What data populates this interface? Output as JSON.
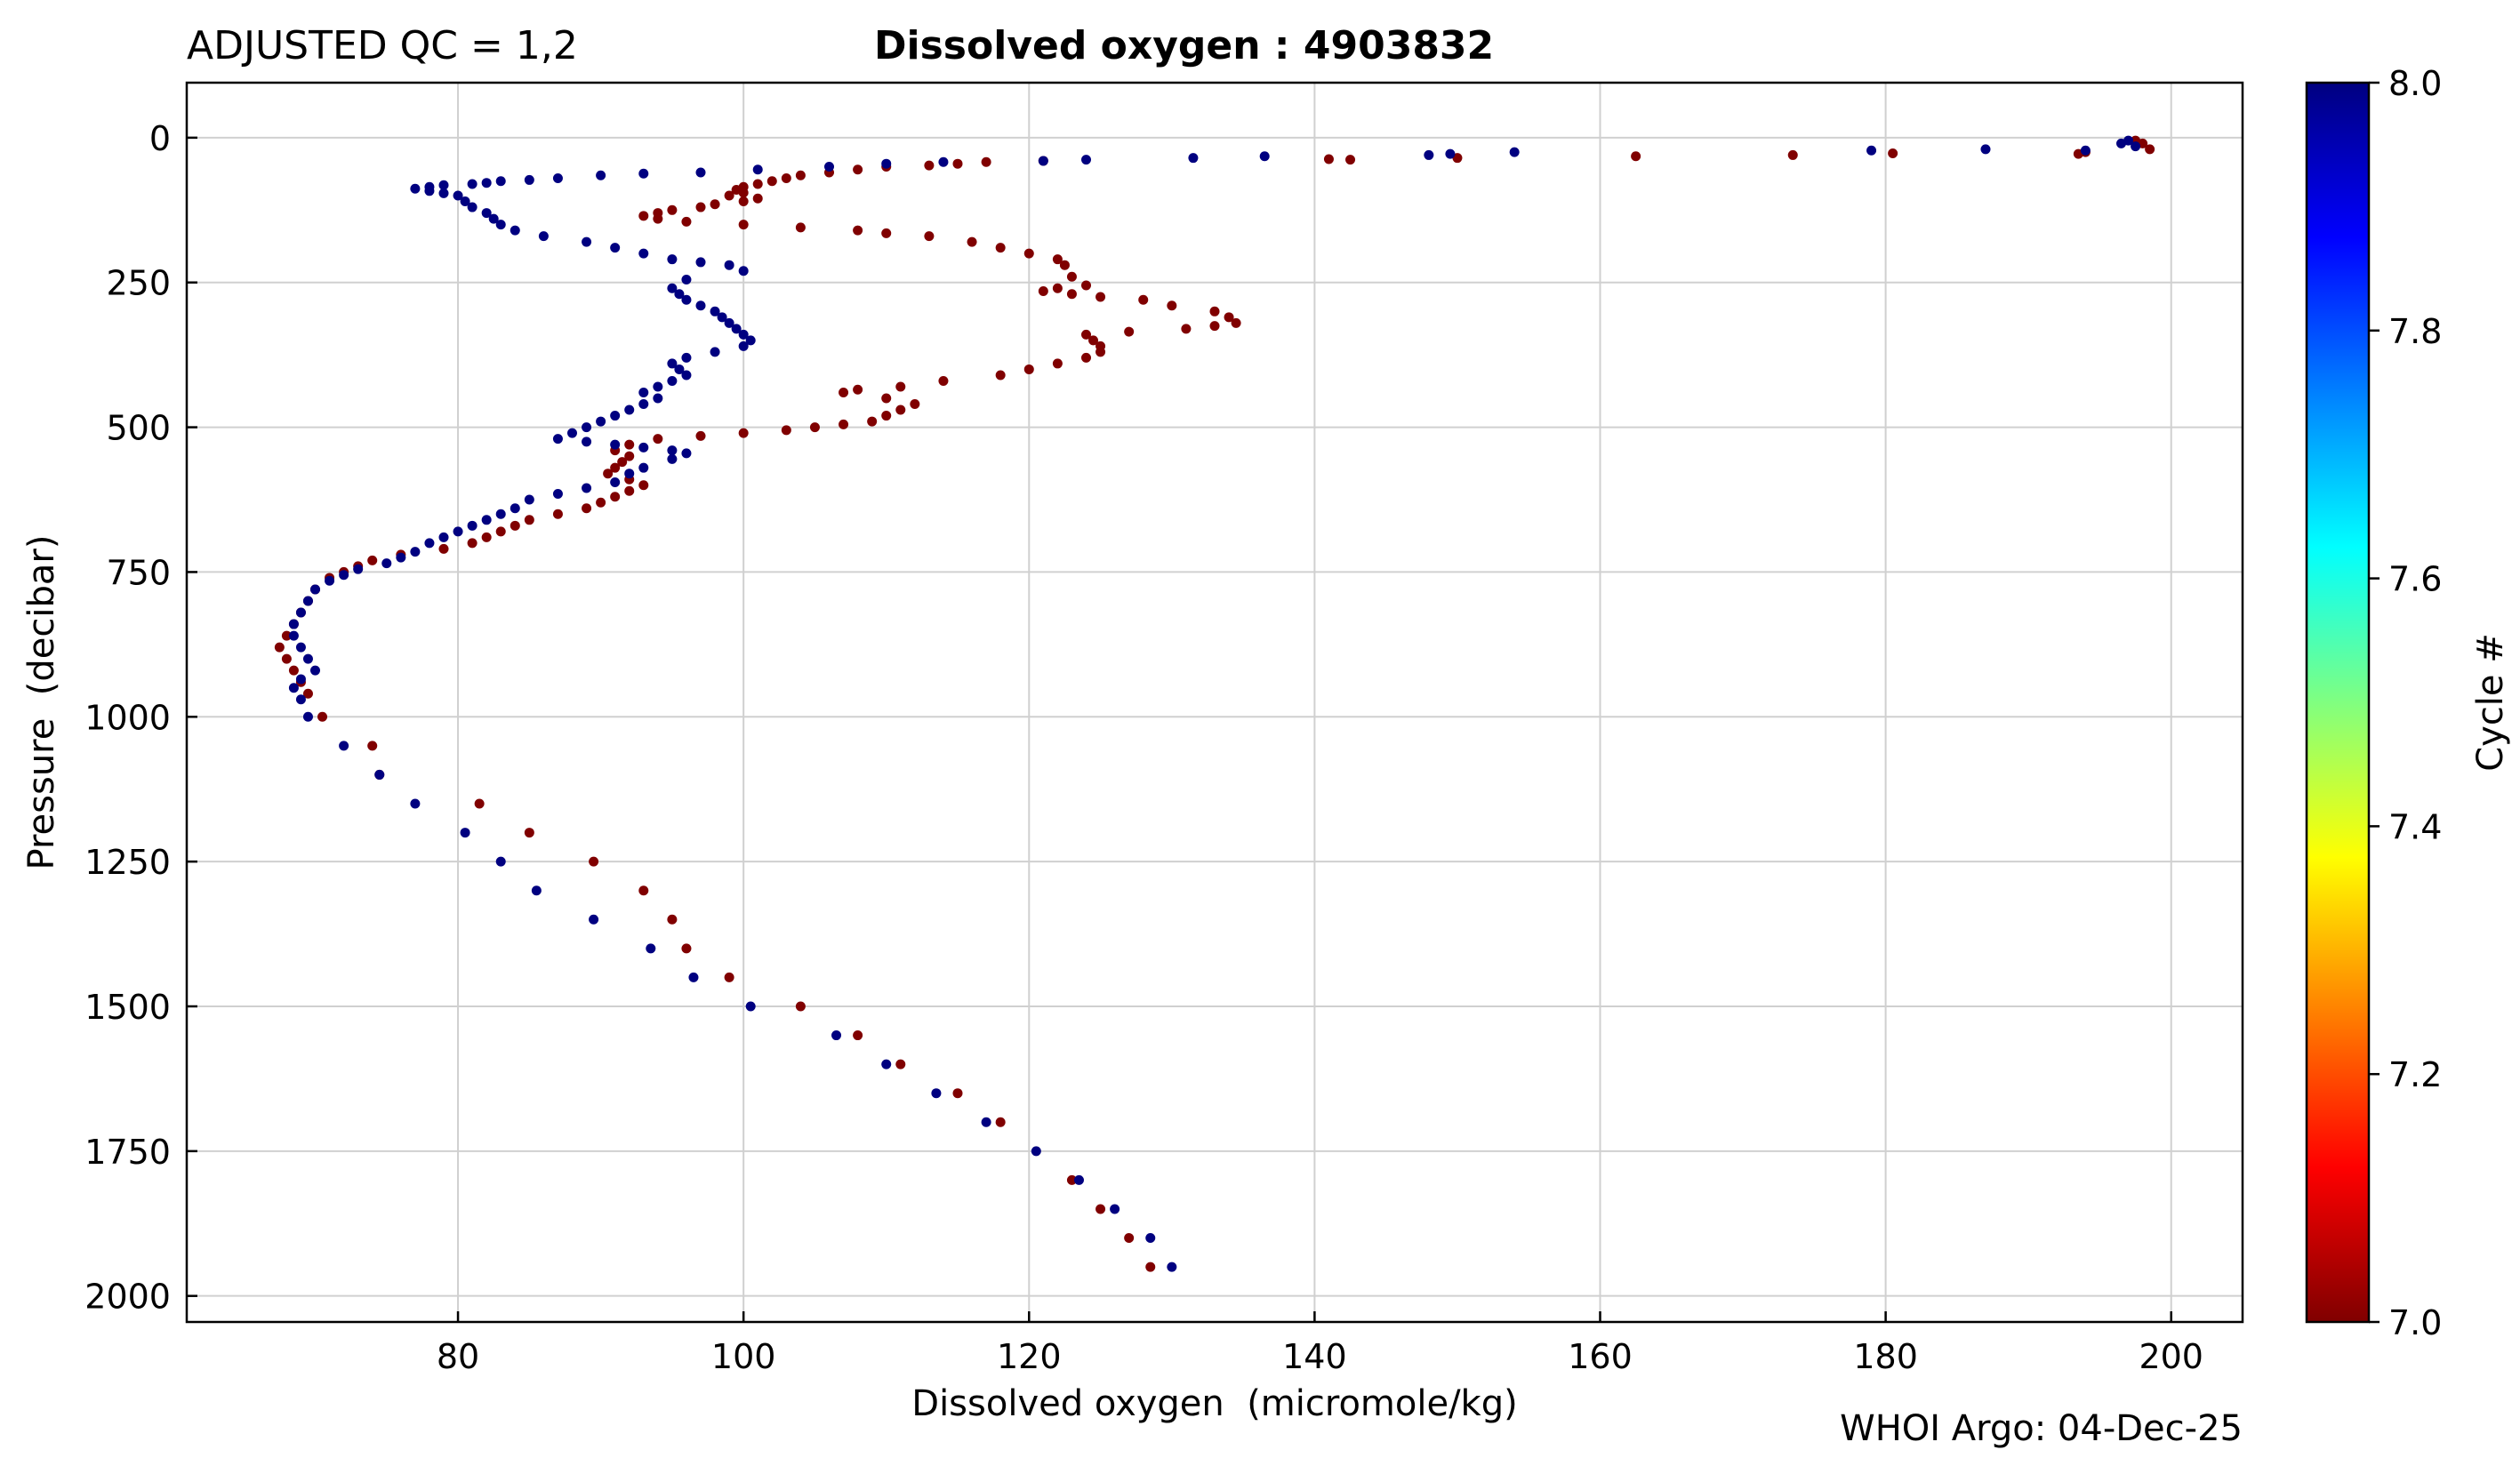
{
  "qc_label": "ADJUSTED QC = 1,2",
  "title_prefix": "Dissolved oxygen",
  "title_sep": ":",
  "title_id": "4903832",
  "credit": "WHOI Argo: 04-Dec-25",
  "chart_data": {
    "type": "scatter",
    "title": "Dissolved oxygen : 4903832",
    "xlabel": "Dissolved oxygen  (micromole/kg)",
    "ylabel": "Pressure  (decibar)",
    "xlim": [
      61,
      205
    ],
    "ylim": [
      2045,
      -95
    ],
    "y_inverted": true,
    "grid": true,
    "xticks": [
      80,
      100,
      120,
      140,
      160,
      180,
      200
    ],
    "yticks": [
      0,
      250,
      500,
      750,
      1000,
      1250,
      1500,
      1750,
      2000
    ],
    "colorbar": {
      "label": "Cycle #",
      "min": 7.0,
      "max": 8.0,
      "ticks": [
        "7.0",
        "7.2",
        "7.4",
        "7.6",
        "7.8",
        "8.0"
      ],
      "colormap": "jet",
      "colors": [
        "#800000",
        "#ff0000",
        "#ff8000",
        "#ffff00",
        "#80ff80",
        "#00ffff",
        "#0080ff",
        "#0000ff",
        "#000080"
      ]
    },
    "series": [
      {
        "name": "Cycle 7",
        "cycle": 7,
        "color": "#800000",
        "points": [
          [
            198.5,
            20
          ],
          [
            198,
            10
          ],
          [
            197.5,
            5
          ],
          [
            194,
            25
          ],
          [
            193.5,
            28
          ],
          [
            180.5,
            27
          ],
          [
            173.5,
            30
          ],
          [
            162.5,
            32
          ],
          [
            150,
            35
          ],
          [
            142.5,
            38
          ],
          [
            141,
            37
          ],
          [
            121,
            40
          ],
          [
            117,
            42
          ],
          [
            115,
            45
          ],
          [
            113,
            48
          ],
          [
            110,
            50
          ],
          [
            108,
            55
          ],
          [
            106,
            60
          ],
          [
            104,
            65
          ],
          [
            103,
            70
          ],
          [
            102,
            75
          ],
          [
            101,
            80
          ],
          [
            100,
            85
          ],
          [
            99.5,
            90
          ],
          [
            100,
            95
          ],
          [
            99,
            100
          ],
          [
            101,
            105
          ],
          [
            100,
            110
          ],
          [
            98,
            115
          ],
          [
            97,
            120
          ],
          [
            95,
            125
          ],
          [
            94,
            130
          ],
          [
            93,
            135
          ],
          [
            94,
            140
          ],
          [
            96,
            145
          ],
          [
            100,
            150
          ],
          [
            104,
            155
          ],
          [
            108,
            160
          ],
          [
            110,
            165
          ],
          [
            113,
            170
          ],
          [
            116,
            180
          ],
          [
            118,
            190
          ],
          [
            120,
            200
          ],
          [
            122,
            210
          ],
          [
            122.5,
            220
          ],
          [
            123,
            240
          ],
          [
            124,
            255
          ],
          [
            122,
            260
          ],
          [
            121,
            265
          ],
          [
            123,
            270
          ],
          [
            125,
            275
          ],
          [
            128,
            280
          ],
          [
            130,
            290
          ],
          [
            133,
            300
          ],
          [
            134,
            310
          ],
          [
            134.5,
            320
          ],
          [
            133,
            325
          ],
          [
            131,
            330
          ],
          [
            127,
            335
          ],
          [
            124,
            340
          ],
          [
            124.5,
            350
          ],
          [
            125,
            360
          ],
          [
            125,
            370
          ],
          [
            124,
            380
          ],
          [
            122,
            390
          ],
          [
            120,
            400
          ],
          [
            118,
            410
          ],
          [
            114,
            420
          ],
          [
            111,
            430
          ],
          [
            108,
            435
          ],
          [
            107,
            440
          ],
          [
            110,
            450
          ],
          [
            112,
            460
          ],
          [
            111,
            470
          ],
          [
            110,
            480
          ],
          [
            109,
            490
          ],
          [
            107,
            495
          ],
          [
            105,
            500
          ],
          [
            103,
            505
          ],
          [
            100,
            510
          ],
          [
            97,
            515
          ],
          [
            94,
            520
          ],
          [
            92,
            530
          ],
          [
            91,
            540
          ],
          [
            92,
            550
          ],
          [
            91.5,
            560
          ],
          [
            91,
            570
          ],
          [
            90.5,
            580
          ],
          [
            92,
            590
          ],
          [
            93,
            600
          ],
          [
            92,
            610
          ],
          [
            91,
            620
          ],
          [
            90,
            630
          ],
          [
            89,
            640
          ],
          [
            87,
            650
          ],
          [
            85,
            660
          ],
          [
            84,
            670
          ],
          [
            83,
            680
          ],
          [
            82,
            690
          ],
          [
            81,
            700
          ],
          [
            79,
            710
          ],
          [
            76,
            720
          ],
          [
            74,
            730
          ],
          [
            73,
            740
          ],
          [
            72,
            750
          ],
          [
            71,
            760
          ],
          [
            70,
            780
          ],
          [
            69.5,
            800
          ],
          [
            69,
            820
          ],
          [
            68.5,
            840
          ],
          [
            68,
            860
          ],
          [
            67.5,
            880
          ],
          [
            68,
            900
          ],
          [
            68.5,
            920
          ],
          [
            69,
            940
          ],
          [
            69.5,
            960
          ],
          [
            70.5,
            1000
          ],
          [
            74,
            1050
          ],
          [
            74.5,
            1100
          ],
          [
            81.5,
            1150
          ],
          [
            85,
            1200
          ],
          [
            89.5,
            1250
          ],
          [
            93,
            1300
          ],
          [
            95,
            1350
          ],
          [
            96,
            1400
          ],
          [
            99,
            1450
          ],
          [
            104,
            1500
          ],
          [
            108,
            1550
          ],
          [
            111,
            1600
          ],
          [
            115,
            1650
          ],
          [
            118,
            1700
          ],
          [
            123,
            1800
          ],
          [
            125,
            1850
          ],
          [
            127,
            1900
          ],
          [
            128.5,
            1950
          ]
        ]
      },
      {
        "name": "Cycle 8",
        "cycle": 8,
        "color": "#000080",
        "points": [
          [
            197,
            5
          ],
          [
            196.5,
            10
          ],
          [
            197.5,
            15
          ],
          [
            194,
            22
          ],
          [
            187,
            20
          ],
          [
            179,
            22
          ],
          [
            154,
            25
          ],
          [
            149.5,
            28
          ],
          [
            148,
            30
          ],
          [
            136.5,
            32
          ],
          [
            131.5,
            35
          ],
          [
            124,
            38
          ],
          [
            121,
            40
          ],
          [
            114,
            42
          ],
          [
            110,
            45
          ],
          [
            106,
            50
          ],
          [
            101,
            55
          ],
          [
            97,
            60
          ],
          [
            93,
            62
          ],
          [
            90,
            65
          ],
          [
            87,
            70
          ],
          [
            85,
            73
          ],
          [
            83,
            75
          ],
          [
            82,
            78
          ],
          [
            81,
            80
          ],
          [
            79,
            82
          ],
          [
            78,
            85
          ],
          [
            77,
            88
          ],
          [
            78,
            92
          ],
          [
            79,
            96
          ],
          [
            80,
            100
          ],
          [
            80.5,
            110
          ],
          [
            81,
            120
          ],
          [
            82,
            130
          ],
          [
            82.5,
            140
          ],
          [
            83,
            150
          ],
          [
            84,
            160
          ],
          [
            86,
            170
          ],
          [
            89,
            180
          ],
          [
            91,
            190
          ],
          [
            93,
            200
          ],
          [
            95,
            210
          ],
          [
            97,
            215
          ],
          [
            99,
            220
          ],
          [
            100,
            230
          ],
          [
            96,
            245
          ],
          [
            95,
            260
          ],
          [
            95.5,
            270
          ],
          [
            96,
            280
          ],
          [
            97,
            290
          ],
          [
            98,
            300
          ],
          [
            98.5,
            310
          ],
          [
            99,
            320
          ],
          [
            99.5,
            330
          ],
          [
            100,
            340
          ],
          [
            100.5,
            350
          ],
          [
            100,
            360
          ],
          [
            98,
            370
          ],
          [
            96,
            380
          ],
          [
            95,
            390
          ],
          [
            95.5,
            400
          ],
          [
            96,
            410
          ],
          [
            95,
            420
          ],
          [
            94,
            430
          ],
          [
            93,
            440
          ],
          [
            94,
            450
          ],
          [
            93,
            460
          ],
          [
            92,
            470
          ],
          [
            91,
            480
          ],
          [
            90,
            490
          ],
          [
            89,
            500
          ],
          [
            88,
            510
          ],
          [
            87,
            520
          ],
          [
            89,
            525
          ],
          [
            91,
            530
          ],
          [
            93,
            535
          ],
          [
            95,
            540
          ],
          [
            96,
            545
          ],
          [
            95,
            555
          ],
          [
            93,
            570
          ],
          [
            92,
            580
          ],
          [
            91,
            595
          ],
          [
            89,
            605
          ],
          [
            87,
            615
          ],
          [
            85,
            625
          ],
          [
            84,
            640
          ],
          [
            83,
            650
          ],
          [
            82,
            660
          ],
          [
            81,
            670
          ],
          [
            80,
            680
          ],
          [
            79,
            690
          ],
          [
            78,
            700
          ],
          [
            77,
            715
          ],
          [
            76,
            725
          ],
          [
            75,
            735
          ],
          [
            73,
            745
          ],
          [
            72,
            755
          ],
          [
            71,
            765
          ],
          [
            70,
            780
          ],
          [
            69.5,
            800
          ],
          [
            69,
            820
          ],
          [
            68.5,
            840
          ],
          [
            68.5,
            860
          ],
          [
            69,
            880
          ],
          [
            69.5,
            900
          ],
          [
            70,
            920
          ],
          [
            69,
            935
          ],
          [
            68.5,
            950
          ],
          [
            69,
            970
          ],
          [
            69.5,
            1000
          ],
          [
            72,
            1050
          ],
          [
            74.5,
            1100
          ],
          [
            77,
            1150
          ],
          [
            80.5,
            1200
          ],
          [
            83,
            1250
          ],
          [
            85.5,
            1300
          ],
          [
            89.5,
            1350
          ],
          [
            93.5,
            1400
          ],
          [
            96.5,
            1450
          ],
          [
            100.5,
            1500
          ],
          [
            106.5,
            1550
          ],
          [
            110,
            1600
          ],
          [
            113.5,
            1650
          ],
          [
            117,
            1700
          ],
          [
            120.5,
            1750
          ],
          [
            123.5,
            1800
          ],
          [
            126,
            1850
          ],
          [
            128.5,
            1900
          ],
          [
            130,
            1950
          ]
        ]
      }
    ]
  }
}
